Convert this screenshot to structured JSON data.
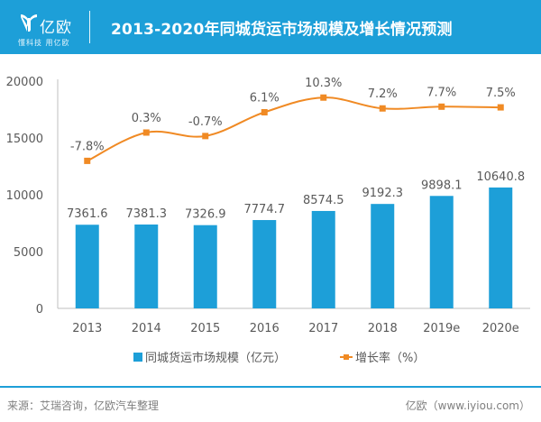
{
  "header": {
    "logo_text": "亿欧",
    "logo_slogan": "懂科技 用亿欧",
    "title": "2013-2020年同城货运市场规模及增长情况预测"
  },
  "colors": {
    "header_bg": "#1d9fd8",
    "bar": "#1d9fd8",
    "line": "#f08a24",
    "text": "#595959"
  },
  "chart_data": {
    "type": "bar",
    "title": "2013-2020年同城货运市场规模及增长情况预测",
    "xlabel": "",
    "ylabel": "",
    "categories": [
      "2013",
      "2014",
      "2015",
      "2016",
      "2017",
      "2018",
      "2019e",
      "2020e"
    ],
    "ylim": [
      0,
      20000
    ],
    "yticks": [
      "0",
      "5000",
      "10000",
      "15000",
      "20000"
    ],
    "grid": false,
    "legend_position": "bottom",
    "series": [
      {
        "name": "同城货运市场规模（亿元）",
        "type": "bar",
        "axis": "left",
        "values": [
          7361.6,
          7381.3,
          7326.9,
          7774.7,
          8574.5,
          9192.3,
          9898.1,
          10640.8
        ],
        "labels": [
          "7361.6",
          "7381.3",
          "7326.9",
          "7774.7",
          "8574.5",
          "9192.3",
          "9898.1",
          "10640.8"
        ]
      },
      {
        "name": "增长率（%）",
        "type": "line",
        "axis": "right-hidden",
        "axis_range": [
          -50,
          15
        ],
        "values": [
          -7.8,
          0.3,
          -0.7,
          6.1,
          10.3,
          7.2,
          7.7,
          7.5
        ],
        "labels": [
          "-7.8%",
          "0.3%",
          "-0.7%",
          "6.1%",
          "10.3%",
          "7.2%",
          "7.7%",
          "7.5%"
        ]
      }
    ]
  },
  "footer": {
    "source": "来源：艾瑞咨询，亿欧汽车整理",
    "site": "亿欧（www.iyiou.com）"
  }
}
